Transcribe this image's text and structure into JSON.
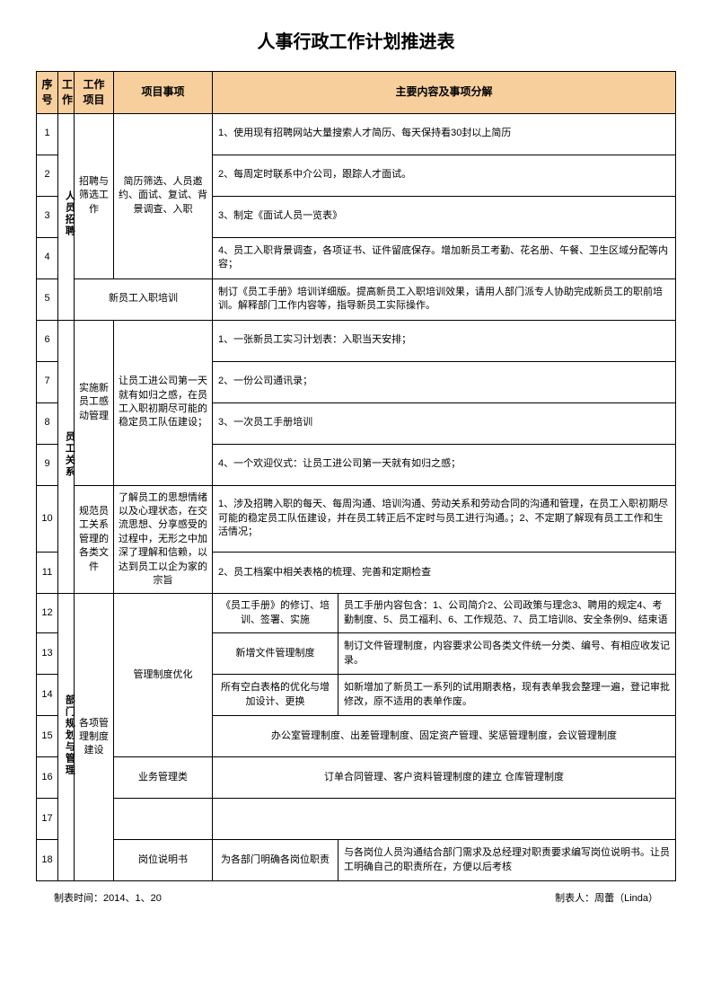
{
  "title": "人事行政工作计划推进表",
  "headers": {
    "seq": "序号",
    "work": "工作",
    "item": "工作项目",
    "project": "项目事项",
    "content": "主要内容及事项分解"
  },
  "footer": {
    "date": "制表时间：2014、1、20",
    "author": "制表人：周蕾（Linda）"
  },
  "groups": {
    "g1": {
      "work": "人员招聘",
      "items": {
        "a": {
          "name": "招聘与筛选工作",
          "project": "简历筛选、人员邀约、面试、复试、背景调查、入职",
          "rows": [
            "1、使用现有招聘网站大量搜索人才简历、每天保持看30封以上简历",
            "2、每周定时联系中介公司，跟踪人才面试。",
            "3、制定《面试人员一览表》",
            "4、员工入职背景调查，各项证书、证件留底保存。增加新员工考勤、花名册、午餐、卫生区域分配等内容；"
          ]
        },
        "b": {
          "project": "新员工入职培训",
          "row": "制订《员工手册》培训详细版。提高新员工入职培训效果，请用人部门派专人协助完成新员工的职前培训。解释部门工作内容等，指导新员工实际操作。"
        }
      }
    },
    "g2": {
      "work": "员工关系",
      "items": {
        "a": {
          "name": "实施新员工感动管理",
          "project": "让员工进公司第一天就有如归之感，在员工入职初期尽可能的稳定员工队伍建设；",
          "rows": [
            "1、一张新员工实习计划表：入职当天安排；",
            "2、一份公司通讯录；",
            "3、一次员工手册培训",
            "4、一个欢迎仪式：让员工进公司第一天就有如归之感；"
          ]
        },
        "b": {
          "name": "规范员工关系管理的各类文件",
          "project": "了解员工的思想情绪以及心理状态，在交流思想、分享感受的过程中，无形之中加深了理解和信赖，以达到员工以企为家的宗旨",
          "rows": [
            "1、涉及招聘入职的每天、每周沟通、培训沟通、劳动关系和劳动合同的沟通和管理，在员工入职初期尽可能的稳定员工队伍建设，并在员工转正后不定时与员工进行沟通。；2、不定期了解现有员工工作和生活情况；",
            "2、员工档案中相关表格的梳理、完善和定期检查"
          ]
        }
      }
    },
    "g3": {
      "work": "部门规划与管理",
      "name": "各项管理制度建设",
      "items": {
        "opt": {
          "project": "管理制度优化",
          "subs": [
            {
              "sub": "《员工手册》的修订、培训、签署、实施",
              "detail": "员工手册内容包含：1、公司简介2、公司政策与理念3、聘用的规定4、考勤制度、5、员工福利、6、工作规范、7、员工培训8、安全条例9、结束语"
            },
            {
              "sub": "新增文件管理制度",
              "detail": "制订文件管理制度，内容要求公司各类文件统一分类、编号、有相应收发记录。"
            },
            {
              "sub": "所有空白表格的优化与增加设计、更换",
              "detail": "如新增加了新员工一系列的试用期表格，现有表单我会整理一遍，登记审批修改，原不适用的表单作废。"
            }
          ],
          "row4": "办公室管理制度、出差管理制度、固定资产管理、奖惩管理制度，会议管理制度"
        },
        "biz": {
          "project": "业务管理类",
          "row": "订单合同管理、客户资料管理制度的建立  仓库管理制度"
        },
        "blank": {
          "project": ""
        },
        "post": {
          "project": "岗位说明书",
          "sub": "为各部门明确各岗位职责",
          "detail": "与各岗位人员沟通结合部门需求及总经理对职责要求编写岗位说明书。让员工明确自己的职责所在，方便以后考核"
        }
      }
    }
  },
  "seq": [
    "1",
    "2",
    "3",
    "4",
    "5",
    "6",
    "7",
    "8",
    "9",
    "10",
    "11",
    "12",
    "13",
    "14",
    "15",
    "16",
    "17",
    "18"
  ]
}
